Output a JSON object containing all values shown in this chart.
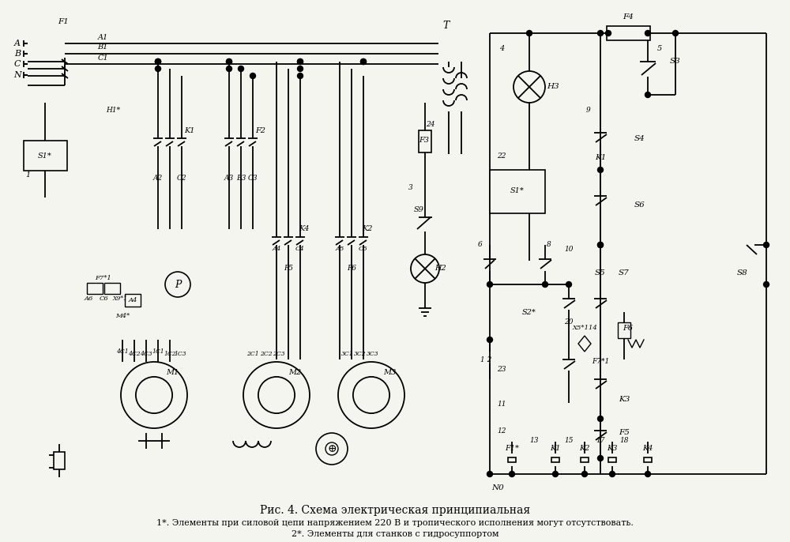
{
  "title": "Рис. 4. Схема электрическая принципиальная",
  "footnote1": "1*. Элементы при силовой цепи напряжением 220 В и тропического исполнения могут отсутствовать.",
  "footnote2": "2*. Элементы для станков с гидросуппортом",
  "bg_color": "#f5f5f0",
  "line_color": "#000000",
  "title_fontsize": 10,
  "footnote_fontsize": 8
}
